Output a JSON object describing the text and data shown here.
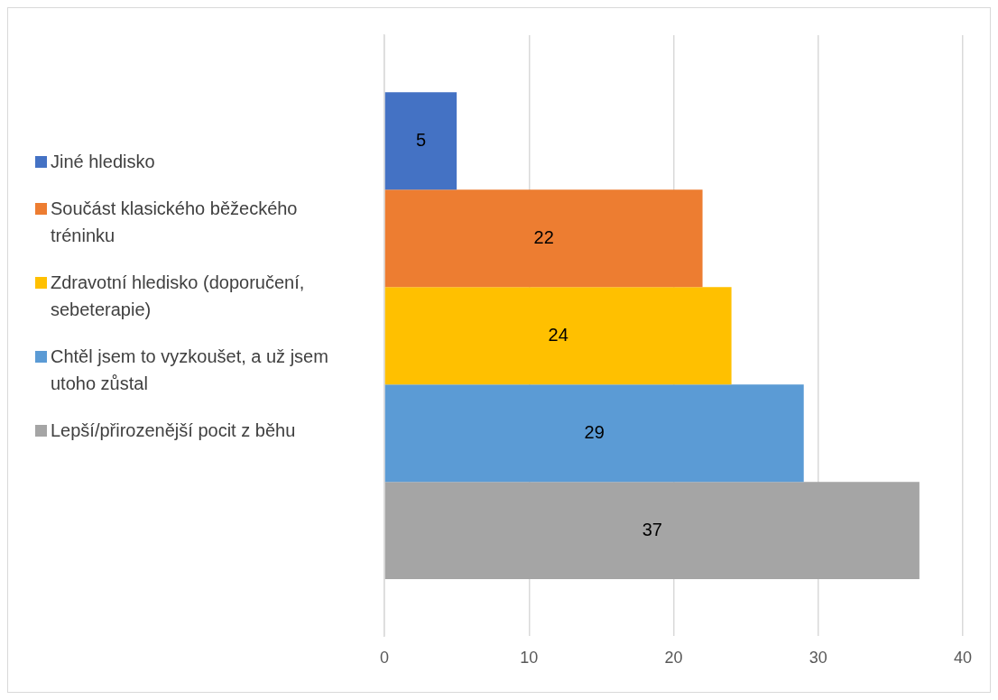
{
  "chart_data": {
    "type": "bar",
    "orientation": "horizontal",
    "categories": [
      null
    ],
    "series": [
      {
        "name": "Jiné hledisko",
        "color": "#4472c4",
        "values": [
          5
        ]
      },
      {
        "name": "Součást klasického běžeckého tréninku",
        "color": "#ed7d31",
        "values": [
          22
        ]
      },
      {
        "name": "Zdravotní hledisko (doporučení, sebeterapie)",
        "color": "#ffc000",
        "values": [
          24
        ]
      },
      {
        "name": "Chtěl jsem to vyzkoušet, a už jsem utoho zůstal",
        "color": "#5b9bd5",
        "values": [
          29
        ]
      },
      {
        "name": "Lepší/přirozenější pocit z běhu",
        "color": "#a5a5a5",
        "values": [
          37
        ]
      }
    ],
    "xlim": [
      0,
      40
    ],
    "xticks": [
      0,
      10,
      20,
      30,
      40
    ],
    "grid": "x",
    "legend": "left",
    "data_labels": true
  }
}
